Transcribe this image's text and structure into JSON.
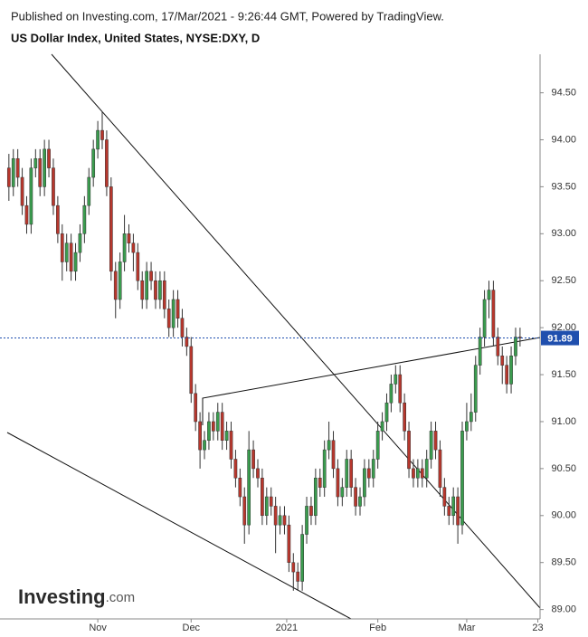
{
  "chart_data": {
    "type": "candlestick",
    "published": "Published on Investing.com, 17/Mar/2021 - 9:26:44 GMT, Powered by TradingView.",
    "title": "US Dollar Index, United States, NYSE:DXY, D",
    "watermark_brand": "Investing",
    "watermark_suffix": ".com",
    "up_color": "#3a9c4e",
    "down_color": "#b8372d",
    "last_price": 91.89,
    "last_price_label": "91.89",
    "last_price_color": "#1f4fae",
    "xlim": [
      -2,
      119.5
    ],
    "xticks": [
      {
        "value": 20,
        "label": "Nov"
      },
      {
        "value": 41,
        "label": "Dec"
      },
      {
        "value": 62.5,
        "label": "2021"
      },
      {
        "value": 83,
        "label": "Feb"
      },
      {
        "value": 103,
        "label": "Mar"
      },
      {
        "value": 119,
        "label": "23"
      }
    ],
    "ylim": [
      88.9,
      94.91
    ],
    "yticks": [
      {
        "value": 89,
        "label": "89.00"
      },
      {
        "value": 89.5,
        "label": "89.50"
      },
      {
        "value": 90,
        "label": "90.00"
      },
      {
        "value": 90.5,
        "label": "90.50"
      },
      {
        "value": 91,
        "label": "91.00"
      },
      {
        "value": 91.5,
        "label": "91.50"
      },
      {
        "value": 92,
        "label": "92.00"
      },
      {
        "value": 92.5,
        "label": "92.50"
      },
      {
        "value": 93,
        "label": "93.00"
      },
      {
        "value": 93.5,
        "label": "93.50"
      },
      {
        "value": 94,
        "label": "94.00"
      },
      {
        "value": 94.5,
        "label": "94.50"
      }
    ],
    "ohlc": [
      [
        93.7,
        93.85,
        93.35,
        93.5
      ],
      [
        93.5,
        93.9,
        93.4,
        93.8
      ],
      [
        93.8,
        93.9,
        93.5,
        93.6
      ],
      [
        93.6,
        93.7,
        93.2,
        93.3
      ],
      [
        93.3,
        93.4,
        93.0,
        93.1
      ],
      [
        93.1,
        93.8,
        93.0,
        93.7
      ],
      [
        93.7,
        93.9,
        93.6,
        93.8
      ],
      [
        93.8,
        93.9,
        93.4,
        93.5
      ],
      [
        93.5,
        94.0,
        93.4,
        93.9
      ],
      [
        93.9,
        94.0,
        93.6,
        93.7
      ],
      [
        93.7,
        93.8,
        93.2,
        93.3
      ],
      [
        93.3,
        93.4,
        92.9,
        93.0
      ],
      [
        93.0,
        93.1,
        92.5,
        92.7
      ],
      [
        92.7,
        93.0,
        92.6,
        92.9
      ],
      [
        92.9,
        93.0,
        92.5,
        92.6
      ],
      [
        92.6,
        92.9,
        92.5,
        92.8
      ],
      [
        92.8,
        93.1,
        92.7,
        93.0
      ],
      [
        93.0,
        93.4,
        92.9,
        93.3
      ],
      [
        93.3,
        93.7,
        93.2,
        93.6
      ],
      [
        93.6,
        94.0,
        93.5,
        93.9
      ],
      [
        93.9,
        94.2,
        93.8,
        94.1
      ],
      [
        94.1,
        94.3,
        93.9,
        94.0
      ],
      [
        94.0,
        94.1,
        93.4,
        93.5
      ],
      [
        93.5,
        93.6,
        92.5,
        92.6
      ],
      [
        92.6,
        92.7,
        92.1,
        92.3
      ],
      [
        92.3,
        92.8,
        92.2,
        92.7
      ],
      [
        92.7,
        93.2,
        92.6,
        93.0
      ],
      [
        93.0,
        93.1,
        92.8,
        92.9
      ],
      [
        92.9,
        93.0,
        92.6,
        92.8
      ],
      [
        92.8,
        92.9,
        92.4,
        92.5
      ],
      [
        92.5,
        92.6,
        92.2,
        92.3
      ],
      [
        92.3,
        92.7,
        92.2,
        92.6
      ],
      [
        92.6,
        92.7,
        92.4,
        92.5
      ],
      [
        92.5,
        92.6,
        92.2,
        92.3
      ],
      [
        92.3,
        92.6,
        92.2,
        92.5
      ],
      [
        92.5,
        92.6,
        92.1,
        92.2
      ],
      [
        92.2,
        92.3,
        91.9,
        92.0
      ],
      [
        92.0,
        92.4,
        91.9,
        92.3
      ],
      [
        92.3,
        92.4,
        92.0,
        92.1
      ],
      [
        92.1,
        92.2,
        91.8,
        91.9
      ],
      [
        91.9,
        92.0,
        91.7,
        91.8
      ],
      [
        91.8,
        91.9,
        91.2,
        91.3
      ],
      [
        91.3,
        91.4,
        90.9,
        91.0
      ],
      [
        91.0,
        91.1,
        90.5,
        90.7
      ],
      [
        90.7,
        90.9,
        90.6,
        90.8
      ],
      [
        90.8,
        91.1,
        90.7,
        91.0
      ],
      [
        91.0,
        91.1,
        90.8,
        90.9
      ],
      [
        90.9,
        91.2,
        90.8,
        91.1
      ],
      [
        91.1,
        91.2,
        90.7,
        90.8
      ],
      [
        90.8,
        91.0,
        90.7,
        90.9
      ],
      [
        90.9,
        91.0,
        90.5,
        90.6
      ],
      [
        90.6,
        90.7,
        90.3,
        90.4
      ],
      [
        90.4,
        90.5,
        90.1,
        90.2
      ],
      [
        90.2,
        90.3,
        89.7,
        89.9
      ],
      [
        89.9,
        90.9,
        89.8,
        90.7
      ],
      [
        90.7,
        90.8,
        90.4,
        90.5
      ],
      [
        90.5,
        90.6,
        90.3,
        90.4
      ],
      [
        90.4,
        90.5,
        89.9,
        90.0
      ],
      [
        90.0,
        90.3,
        89.9,
        90.2
      ],
      [
        90.2,
        90.3,
        90.0,
        90.1
      ],
      [
        90.1,
        90.2,
        89.6,
        89.9
      ],
      [
        89.9,
        90.1,
        89.8,
        90.0
      ],
      [
        90.0,
        90.1,
        89.8,
        89.9
      ],
      [
        89.9,
        90.0,
        89.4,
        89.5
      ],
      [
        89.5,
        89.6,
        89.2,
        89.4
      ],
      [
        89.4,
        89.5,
        89.2,
        89.3
      ],
      [
        89.3,
        89.9,
        89.2,
        89.8
      ],
      [
        89.8,
        90.2,
        89.7,
        90.1
      ],
      [
        90.1,
        90.2,
        89.9,
        90.0
      ],
      [
        90.0,
        90.5,
        89.9,
        90.4
      ],
      [
        90.4,
        90.5,
        90.2,
        90.3
      ],
      [
        90.3,
        90.8,
        90.2,
        90.7
      ],
      [
        90.7,
        91.0,
        90.6,
        90.8
      ],
      [
        90.8,
        90.9,
        90.4,
        90.5
      ],
      [
        90.5,
        90.6,
        90.1,
        90.2
      ],
      [
        90.2,
        90.4,
        90.1,
        90.3
      ],
      [
        90.3,
        90.7,
        90.2,
        90.6
      ],
      [
        90.6,
        90.7,
        90.2,
        90.3
      ],
      [
        90.3,
        90.4,
        90.0,
        90.1
      ],
      [
        90.1,
        90.3,
        90.0,
        90.2
      ],
      [
        90.2,
        90.6,
        90.1,
        90.5
      ],
      [
        90.5,
        90.6,
        90.3,
        90.4
      ],
      [
        90.4,
        90.7,
        90.3,
        90.6
      ],
      [
        90.6,
        91.0,
        90.5,
        90.9
      ],
      [
        90.9,
        91.1,
        90.8,
        91.0
      ],
      [
        91.0,
        91.3,
        90.9,
        91.2
      ],
      [
        91.2,
        91.5,
        91.1,
        91.4
      ],
      [
        91.4,
        91.6,
        91.3,
        91.5
      ],
      [
        91.5,
        91.6,
        91.1,
        91.2
      ],
      [
        91.2,
        91.3,
        90.8,
        90.9
      ],
      [
        90.9,
        91.0,
        90.4,
        90.5
      ],
      [
        90.5,
        90.6,
        90.3,
        90.4
      ],
      [
        90.4,
        90.6,
        90.3,
        90.5
      ],
      [
        90.5,
        90.6,
        90.3,
        90.4
      ],
      [
        90.4,
        90.7,
        90.3,
        90.6
      ],
      [
        90.6,
        91.0,
        90.5,
        90.9
      ],
      [
        90.9,
        91.0,
        90.6,
        90.7
      ],
      [
        90.7,
        90.8,
        90.2,
        90.3
      ],
      [
        90.3,
        90.4,
        90.0,
        90.1
      ],
      [
        90.1,
        90.2,
        89.9,
        90.0
      ],
      [
        90.0,
        90.3,
        89.9,
        90.2
      ],
      [
        90.2,
        90.3,
        89.7,
        89.9
      ],
      [
        89.9,
        91.0,
        89.8,
        90.9
      ],
      [
        90.9,
        91.2,
        90.8,
        91.0
      ],
      [
        91.0,
        91.3,
        90.9,
        91.1
      ],
      [
        91.1,
        91.7,
        91.0,
        91.6
      ],
      [
        91.6,
        92.0,
        91.5,
        91.9
      ],
      [
        91.9,
        92.4,
        91.8,
        92.3
      ],
      [
        92.3,
        92.5,
        92.1,
        92.4
      ],
      [
        92.4,
        92.5,
        91.8,
        91.9
      ],
      [
        91.9,
        92.0,
        91.6,
        91.7
      ],
      [
        91.7,
        91.8,
        91.4,
        91.6
      ],
      [
        91.6,
        91.7,
        91.3,
        91.4
      ],
      [
        91.4,
        91.8,
        91.3,
        91.7
      ],
      [
        91.7,
        92.0,
        91.6,
        91.9
      ],
      [
        91.9,
        92.0,
        91.8,
        91.89
      ]
    ]
  }
}
